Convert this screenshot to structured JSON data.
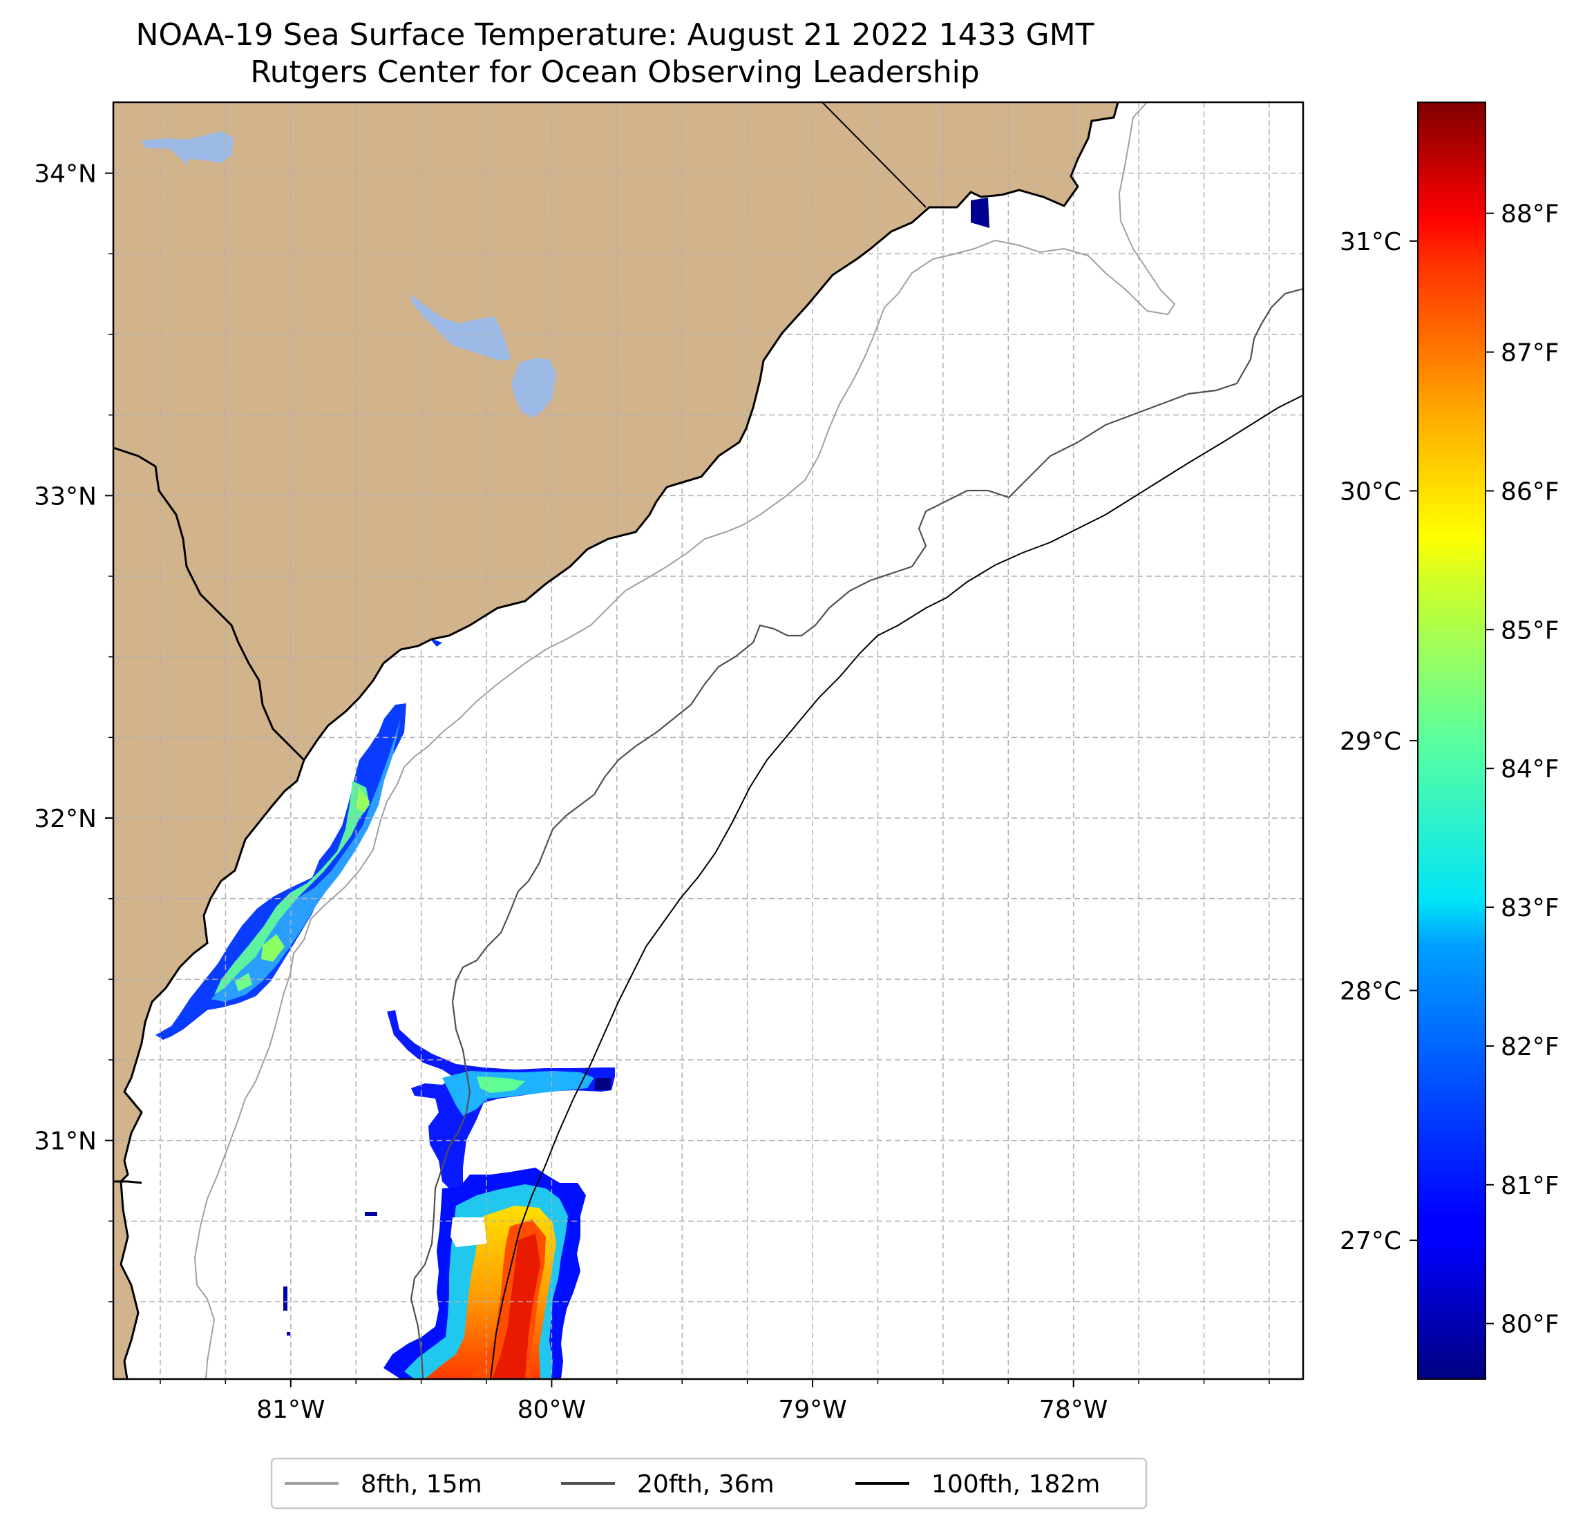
{
  "title": {
    "line1": "NOAA-19 Sea Surface Temperature: August 21 2022 1433 GMT",
    "line2": "Rutgers Center for Ocean Observing Leadership"
  },
  "map": {
    "lon_range": [
      -81.68,
      -77.12
    ],
    "lat_range": [
      30.26,
      34.22
    ],
    "lat_labels": [
      {
        "value": 34,
        "text": "34°N"
      },
      {
        "value": 33,
        "text": "33°N"
      },
      {
        "value": 32,
        "text": "32°N"
      },
      {
        "value": 31,
        "text": "31°N"
      }
    ],
    "lon_labels": [
      {
        "value": -81,
        "text": "81°W"
      },
      {
        "value": -80,
        "text": "80°W"
      },
      {
        "value": -79,
        "text": "79°W"
      },
      {
        "value": -78,
        "text": "78°W"
      }
    ],
    "colors": {
      "land": "#d2b48c",
      "lake": "#9db9e6",
      "iso_8fth": "#a0a0a0",
      "iso_20fth": "#505050",
      "iso_100fth": "#000000",
      "grid": "#b0b0b0"
    }
  },
  "colorbar": {
    "range_f": [
      79.6,
      88.8
    ],
    "fahrenheit_ticks": [
      "80°F",
      "81°F",
      "82°F",
      "83°F",
      "84°F",
      "85°F",
      "86°F",
      "87°F",
      "88°F"
    ],
    "celsius_ticks": [
      "27°C",
      "28°C",
      "29°C",
      "30°C",
      "31°C"
    ]
  },
  "legend": {
    "items": [
      {
        "label": "8fth, 15m",
        "color": "#a0a0a0"
      },
      {
        "label": "20fth, 36m",
        "color": "#505050"
      },
      {
        "label": "100fth, 182m",
        "color": "#000000"
      }
    ]
  }
}
